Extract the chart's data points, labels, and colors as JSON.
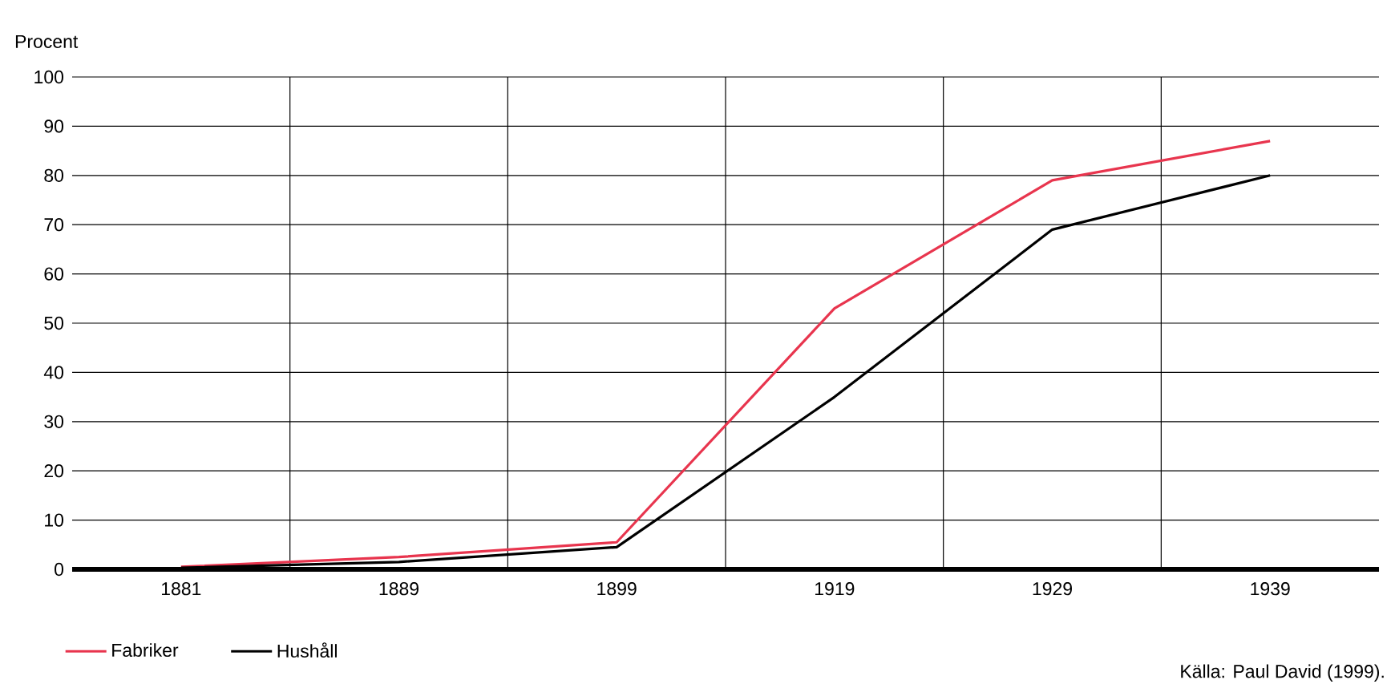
{
  "chart_data": {
    "type": "line",
    "ylabel": "Procent",
    "categories": [
      "1881",
      "1889",
      "1899",
      "1919",
      "1929",
      "1939"
    ],
    "series": [
      {
        "name": "Fabriker",
        "color": "#e8354e",
        "values": [
          0.5,
          2.5,
          5.5,
          53,
          79,
          87
        ]
      },
      {
        "name": "Hushåll",
        "color": "#000000",
        "values": [
          0.3,
          1.5,
          4.5,
          35,
          69,
          80
        ]
      }
    ],
    "ylim": [
      0,
      100
    ],
    "yticks": [
      0,
      10,
      20,
      30,
      40,
      50,
      60,
      70,
      80,
      90,
      100
    ],
    "grid": true,
    "legend": "bottom left",
    "annotations": [
      "Källa: Paul David (1999)."
    ]
  }
}
